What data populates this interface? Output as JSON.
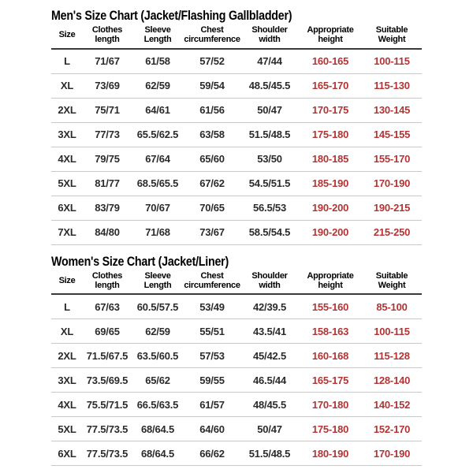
{
  "colors": {
    "value_red": "#b23434",
    "text_black": "#000000",
    "row_line_gray": "#c9c9c9",
    "header_line_dark": "#3a3a3a",
    "background": "#ffffff"
  },
  "men": {
    "title": "Men's Size Chart (Jacket/Flashing Gallbladder)",
    "headers": [
      "Size",
      "Clothes\nlength",
      "Sleeve\nLength",
      "Chest\ncircumference",
      "Shoulder\nwidth",
      "Appropriate\nheight",
      "Suitable\nWeight"
    ],
    "rows": [
      [
        "L",
        "71/67",
        "61/58",
        "57/52",
        "47/44",
        "160-165",
        "100-115"
      ],
      [
        "XL",
        "73/69",
        "62/59",
        "59/54",
        "48.5/45.5",
        "165-170",
        "115-130"
      ],
      [
        "2XL",
        "75/71",
        "64/61",
        "61/56",
        "50/47",
        "170-175",
        "130-145"
      ],
      [
        "3XL",
        "77/73",
        "65.5/62.5",
        "63/58",
        "51.5/48.5",
        "175-180",
        "145-155"
      ],
      [
        "4XL",
        "79/75",
        "67/64",
        "65/60",
        "53/50",
        "180-185",
        "155-170"
      ],
      [
        "5XL",
        "81/77",
        "68.5/65.5",
        "67/62",
        "54.5/51.5",
        "185-190",
        "170-190"
      ],
      [
        "6XL",
        "83/79",
        "70/67",
        "70/65",
        "56.5/53",
        "190-200",
        "190-215"
      ],
      [
        "7XL",
        "84/80",
        "71/68",
        "73/67",
        "58.5/54.5",
        "190-200",
        "215-250"
      ]
    ]
  },
  "women": {
    "title": "Women's Size Chart (Jacket/Liner)",
    "headers": [
      "Size",
      "Clothes\nlength",
      "Sleeve\nLength",
      "Chest\ncircumference",
      "Shoulder\nwidth",
      "Appropriate\nheight",
      "Suitable\nWeight"
    ],
    "rows": [
      [
        "L",
        "67/63",
        "60.5/57.5",
        "53/49",
        "42/39.5",
        "155-160",
        "85-100"
      ],
      [
        "XL",
        "69/65",
        "62/59",
        "55/51",
        "43.5/41",
        "158-163",
        "100-115"
      ],
      [
        "2XL",
        "71.5/67.5",
        "63.5/60.5",
        "57/53",
        "45/42.5",
        "160-168",
        "115-128"
      ],
      [
        "3XL",
        "73.5/69.5",
        "65/62",
        "59/55",
        "46.5/44",
        "165-175",
        "128-140"
      ],
      [
        "4XL",
        "75.5/71.5",
        "66.5/63.5",
        "61/57",
        "48/45.5",
        "170-180",
        "140-152"
      ],
      [
        "5XL",
        "77.5/73.5",
        "68/64.5",
        "64/60",
        "50/47",
        "175-180",
        "152-170"
      ],
      [
        "6XL",
        "77.5/73.5",
        "68/64.5",
        "66/62",
        "51.5/48.5",
        "180-190",
        "170-190"
      ]
    ]
  }
}
